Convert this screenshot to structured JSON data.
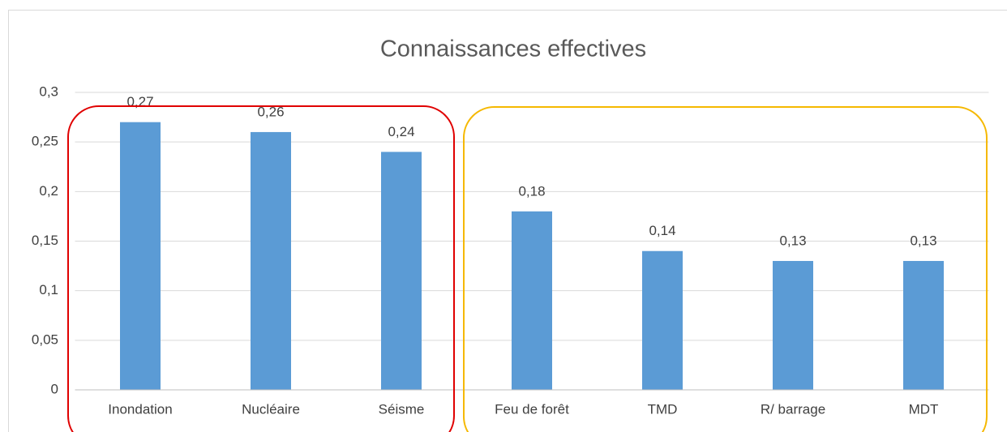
{
  "chart_data": {
    "type": "bar",
    "title": "Connaissances effectives",
    "categories": [
      "Inondation",
      "Nucléaire",
      "Séisme",
      "Feu de forêt",
      "TMD",
      "R/ barrage",
      "MDT"
    ],
    "values": [
      0.27,
      0.26,
      0.24,
      0.18,
      0.14,
      0.13,
      0.13
    ],
    "value_labels": [
      "0,27",
      "0,26",
      "0,24",
      "0,18",
      "0,14",
      "0,13",
      "0,13"
    ],
    "color": "#5b9bd5",
    "ylim": [
      0,
      0.3
    ],
    "yticks": [
      0,
      {
        "value": 0.05,
        "label": "0,05"
      },
      {
        "value": 0.1,
        "label": "0,1"
      },
      {
        "value": 0.15,
        "label": "0,15"
      },
      {
        "value": 0.2,
        "label": "0,2"
      },
      {
        "value": 0.25,
        "label": "0,25"
      },
      {
        "value": 0.3,
        "label": "0,3"
      }
    ],
    "grid": true
  }
}
